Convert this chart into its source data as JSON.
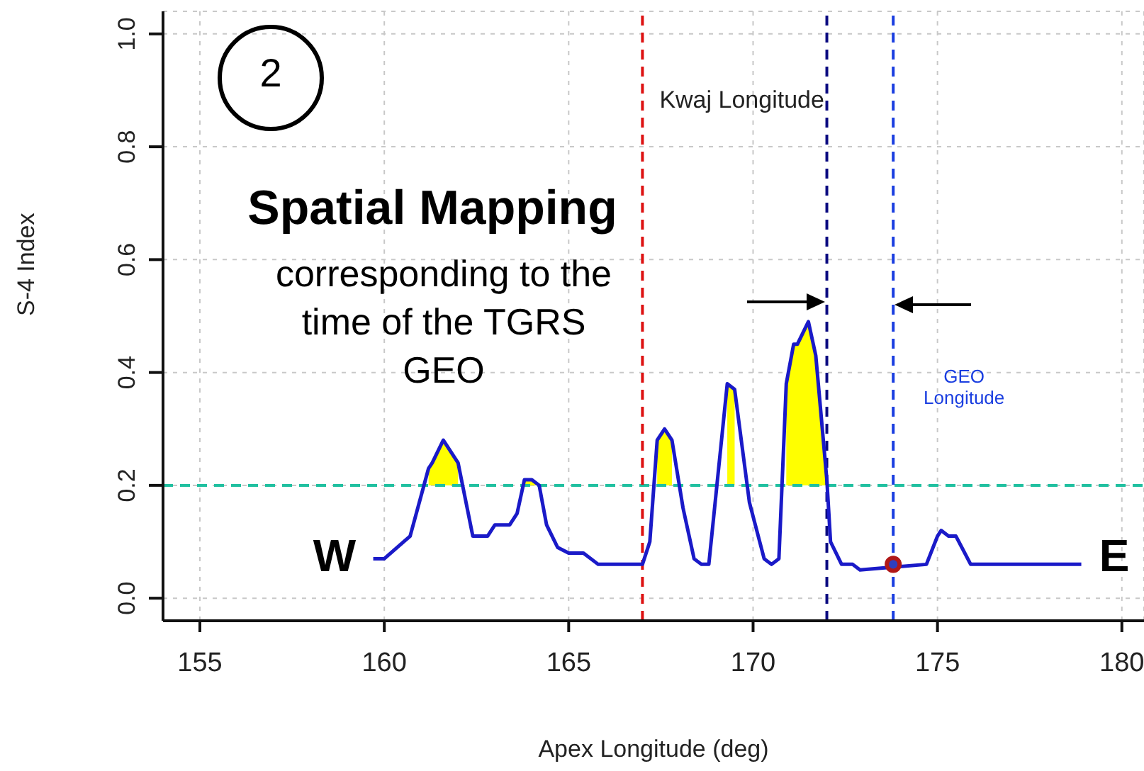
{
  "chart_data": {
    "type": "line",
    "xlabel": "Apex Longitude (deg)",
    "ylabel": "S-4 Index",
    "xlim": [
      154,
      180.6
    ],
    "xticks": [
      155,
      160,
      165,
      170,
      175,
      180
    ],
    "ylim": [
      -0.04,
      1.04
    ],
    "yticks": [
      {
        "value": 0,
        "label": "0.0"
      },
      0.2,
      0.4,
      0.6,
      0.8,
      {
        "value": 1,
        "label": "1.0"
      }
    ],
    "grid": true,
    "legend": false,
    "marker": "none",
    "line_style": "solid",
    "series": [
      {
        "color": "#1a1ac8",
        "x": [
          159.7,
          160.0,
          160.7,
          161.2,
          161.3,
          161.6,
          161.8,
          162.0,
          162.4,
          162.8,
          163.0,
          163.4,
          163.6,
          163.8,
          164.0,
          164.2,
          164.4,
          164.7,
          165.0,
          165.4,
          165.8,
          167.0,
          167.2,
          167.4,
          167.6,
          167.8,
          168.1,
          168.4,
          168.6,
          168.8,
          169.3,
          169.5,
          169.9,
          170.3,
          170.5,
          170.7,
          170.9,
          171.1,
          171.2,
          171.5,
          171.7,
          172.0,
          172.1,
          172.4,
          172.7,
          172.9,
          174.7,
          175.0,
          175.1,
          175.3,
          175.5,
          175.9,
          178.9
        ],
        "values": [
          0.07,
          0.07,
          0.11,
          0.23,
          0.24,
          0.28,
          0.26,
          0.24,
          0.11,
          0.11,
          0.13,
          0.13,
          0.15,
          0.21,
          0.21,
          0.2,
          0.13,
          0.09,
          0.08,
          0.08,
          0.06,
          0.06,
          0.1,
          0.28,
          0.3,
          0.28,
          0.16,
          0.07,
          0.06,
          0.06,
          0.38,
          0.37,
          0.17,
          0.07,
          0.06,
          0.07,
          0.38,
          0.45,
          0.45,
          0.49,
          0.43,
          0.21,
          0.1,
          0.06,
          0.06,
          0.05,
          0.06,
          0.11,
          0.12,
          0.11,
          0.11,
          0.06,
          0.06
        ],
        "lower": [
          null,
          null,
          null,
          0.2,
          0.2,
          0.2,
          0.2,
          0.2,
          null,
          null,
          null,
          null,
          null,
          0.2,
          0.2,
          0.2,
          null,
          null,
          null,
          null,
          null,
          null,
          null,
          0.2,
          0.2,
          0.2,
          null,
          null,
          null,
          null,
          0.2,
          0.2,
          null,
          null,
          null,
          null,
          0.2,
          0.2,
          0.2,
          0.2,
          0.2,
          0.2,
          null,
          null,
          null,
          null,
          null,
          null,
          null,
          null,
          null,
          null,
          null
        ],
        "upper": [
          null,
          null,
          null,
          0.23,
          0.24,
          0.28,
          0.26,
          0.24,
          null,
          null,
          null,
          null,
          null,
          0.21,
          0.21,
          0.2,
          null,
          null,
          null,
          null,
          null,
          null,
          null,
          0.28,
          0.3,
          0.28,
          null,
          null,
          null,
          null,
          0.38,
          0.37,
          null,
          null,
          null,
          null,
          0.38,
          0.45,
          0.45,
          0.49,
          0.43,
          0.21,
          null,
          null,
          null,
          null,
          null,
          null,
          null,
          null,
          null,
          null,
          null
        ]
      },
      {
        "type": "scatter",
        "color": "#2e3fbf",
        "marker": "circle",
        "x": [
          173.8
        ],
        "values": [
          0.06
        ]
      }
    ],
    "ref_lines": [
      {
        "axis": "y",
        "value": 0.2,
        "color": "#20c0a0",
        "line_style": "dashed"
      },
      {
        "axis": "x",
        "value": 167.0,
        "label": "Kwaj Longitude",
        "color": "#dd1111",
        "line_style": "dashed"
      },
      {
        "axis": "x",
        "value": 172.0,
        "color": "#0a0a80",
        "line_style": "dashed"
      },
      {
        "axis": "x",
        "value": 173.8,
        "label": "GEO Longitude",
        "color": "#1a3ee0",
        "line_style": "dashed"
      }
    ],
    "annotations": [
      "2",
      "Spatial Mapping",
      "corresponding to the time of the TGRS GEO",
      "W",
      "E"
    ]
  }
}
